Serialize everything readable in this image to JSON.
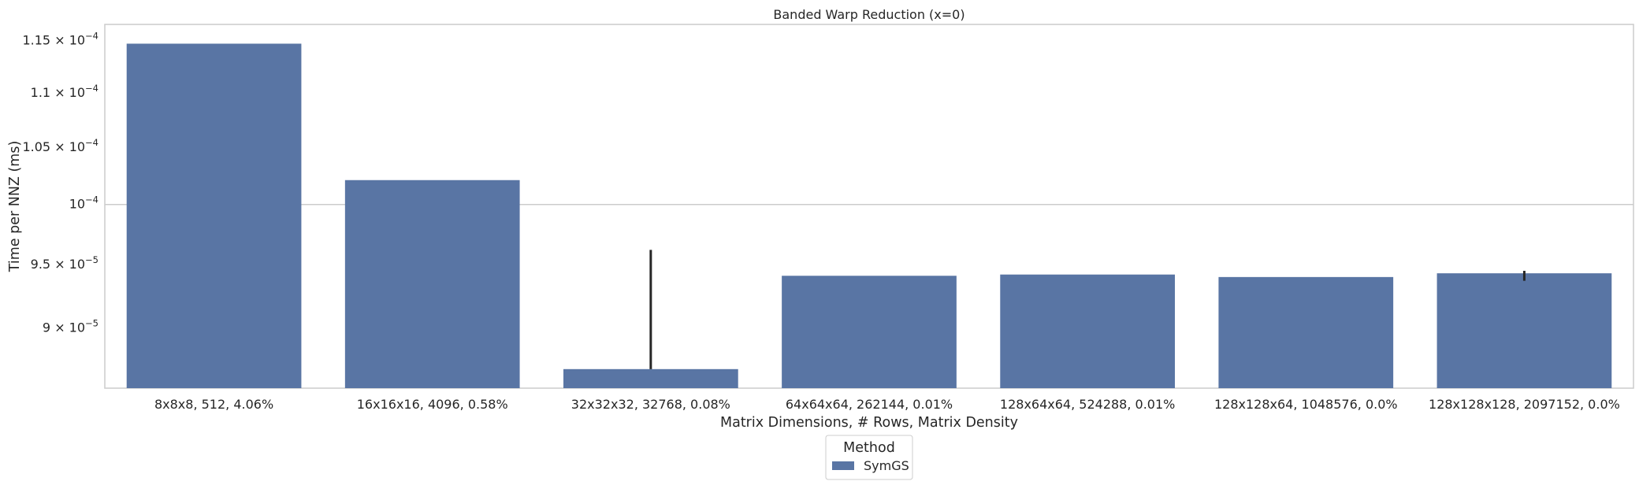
{
  "chart_data": {
    "type": "bar",
    "title": "Banded Warp Reduction (x=0)",
    "xlabel": "Matrix Dimensions, # Rows, Matrix Density",
    "ylabel": "Time per NNZ (ms)",
    "yscale": "log",
    "ylim": [
      8.55e-05,
      0.0001166
    ],
    "grid": "horizontal at major tick only",
    "categories": [
      "8x8x8, 512, 4.06%",
      "16x16x16, 4096, 0.58%",
      "32x32x32, 32768, 0.08%",
      "64x64x64, 262144, 0.01%",
      "128x64x64, 524288, 0.01%",
      "128x128x64, 1048576, 0.0%",
      "128x128x128, 2097152, 0.0%"
    ],
    "series": [
      {
        "name": "SymGS",
        "color": "#5975a4",
        "values": [
          0.0001147,
          0.0001021,
          8.69e-05,
          9.41e-05,
          9.42e-05,
          9.4e-05,
          9.43e-05
        ],
        "error_low": [
          null,
          null,
          8.69e-05,
          null,
          null,
          null,
          9.37e-05
        ],
        "error_high": [
          null,
          null,
          9.62e-05,
          null,
          null,
          null,
          9.45e-05
        ]
      }
    ],
    "yticks": [
      {
        "value": 9e-05,
        "mantissa": "9",
        "exp": "−5"
      },
      {
        "value": 9.5e-05,
        "mantissa": "9.5",
        "exp": "−5"
      },
      {
        "value": 0.0001,
        "mantissa": "",
        "exp": "−4"
      },
      {
        "value": 0.000105,
        "mantissa": "1.05",
        "exp": "−4"
      },
      {
        "value": 0.00011,
        "mantissa": "1.1",
        "exp": "−4"
      },
      {
        "value": 0.000115,
        "mantissa": "1.15",
        "exp": "−4"
      }
    ],
    "legend": {
      "title": "Method",
      "placement": "bottom-center, outside plot"
    }
  }
}
